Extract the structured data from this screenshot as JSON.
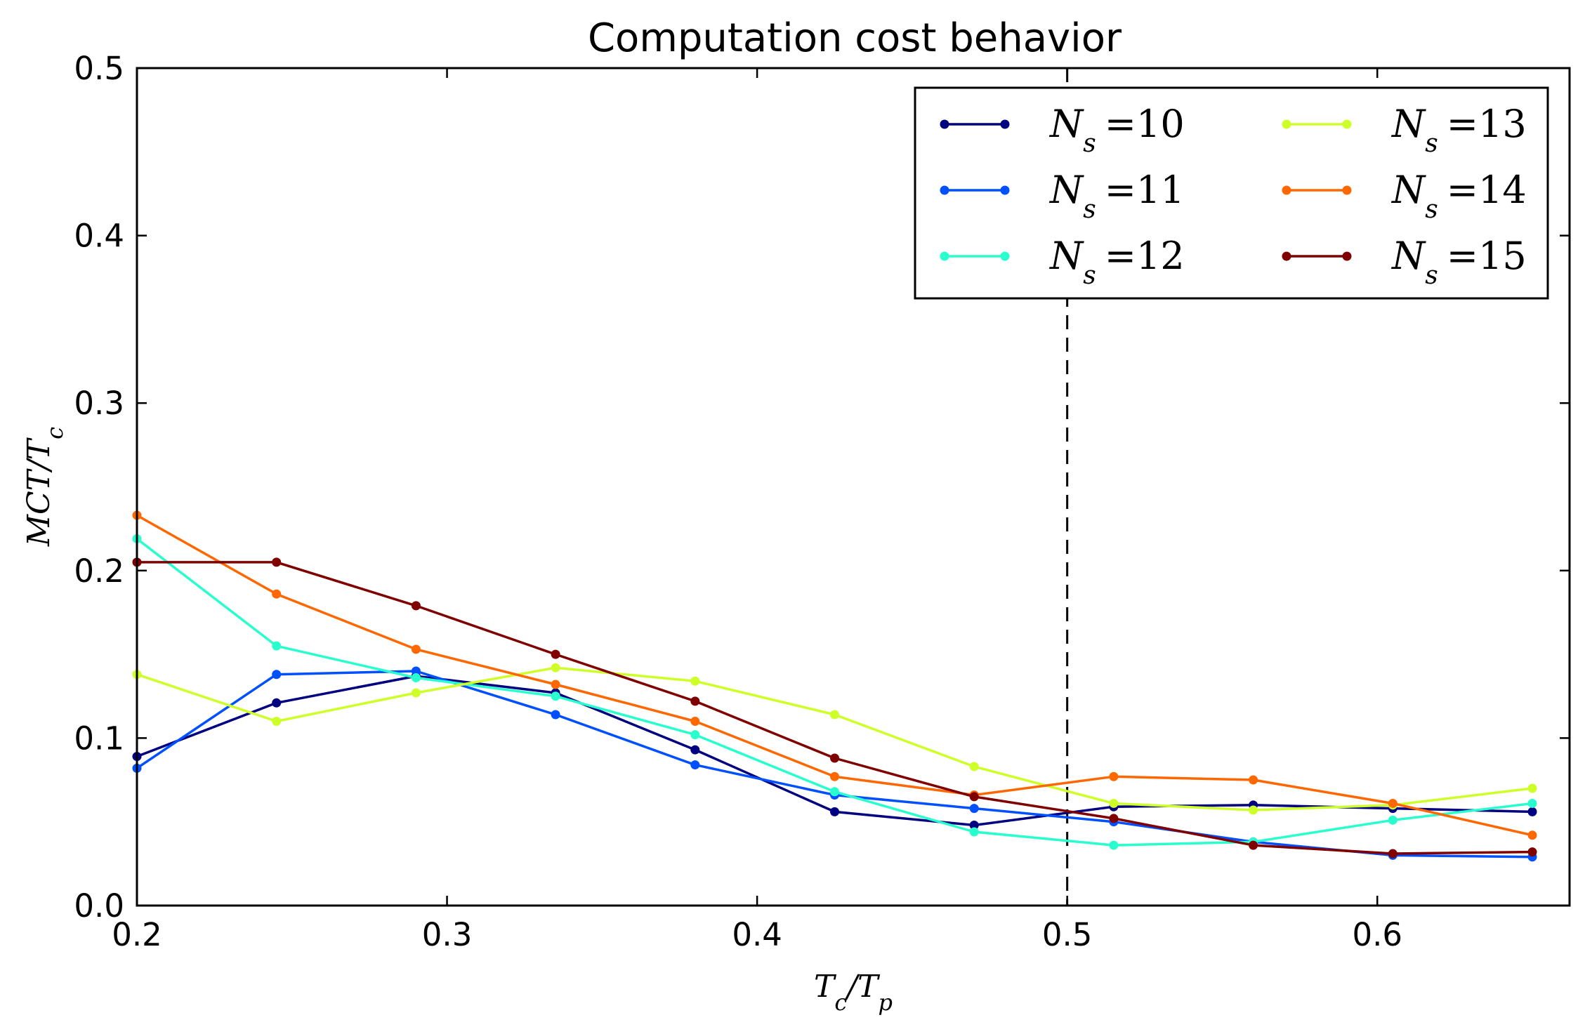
{
  "chart_data": {
    "type": "line",
    "title": "Computation cost behavior",
    "xlabel": "Tc/Tp",
    "ylabel": "MCT/Tc",
    "xlim": [
      0.2,
      0.662
    ],
    "ylim": [
      0.0,
      0.5
    ],
    "x_ticks": [
      "0.2",
      "0.3",
      "0.4",
      "0.5",
      "0.6"
    ],
    "y_ticks": [
      "0.0",
      "0.1",
      "0.2",
      "0.3",
      "0.4",
      "0.5"
    ],
    "grid": false,
    "legend_position": "top-right",
    "vline": {
      "x": 0.5,
      "style": "dashed",
      "color": "#000000"
    },
    "x": [
      0.2,
      0.245,
      0.29,
      0.335,
      0.38,
      0.425,
      0.47,
      0.515,
      0.56,
      0.605,
      0.65
    ],
    "series": [
      {
        "name": "N_s = 10",
        "color": "#000080",
        "values": [
          0.089,
          0.121,
          0.137,
          0.127,
          0.093,
          0.056,
          0.048,
          0.059,
          0.06,
          0.058,
          0.056
        ]
      },
      {
        "name": "N_s = 11",
        "color": "#0050ff",
        "values": [
          0.082,
          0.138,
          0.14,
          0.114,
          0.084,
          0.066,
          0.058,
          0.05,
          0.038,
          0.03,
          0.029
        ]
      },
      {
        "name": "N_s = 12",
        "color": "#29ffce",
        "values": [
          0.219,
          0.155,
          0.136,
          0.125,
          0.102,
          0.068,
          0.044,
          0.036,
          0.038,
          0.051,
          0.061
        ]
      },
      {
        "name": "N_s = 13",
        "color": "#ceff29",
        "values": [
          0.138,
          0.11,
          0.127,
          0.142,
          0.134,
          0.114,
          0.083,
          0.061,
          0.057,
          0.06,
          0.07
        ]
      },
      {
        "name": "N_s = 14",
        "color": "#ff6800",
        "values": [
          0.233,
          0.186,
          0.153,
          0.132,
          0.11,
          0.077,
          0.066,
          0.077,
          0.075,
          0.061,
          0.042
        ]
      },
      {
        "name": "N_s = 15",
        "color": "#800000",
        "values": [
          0.205,
          0.205,
          0.179,
          0.15,
          0.122,
          0.088,
          0.065,
          0.052,
          0.036,
          0.031,
          0.032
        ]
      }
    ]
  }
}
